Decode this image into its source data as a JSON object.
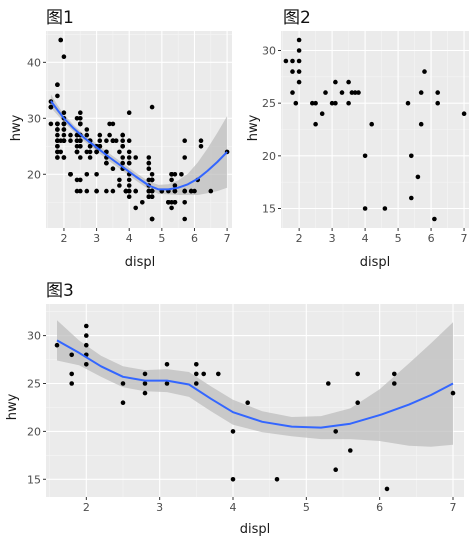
{
  "colors": {
    "panel_bg": "#ebebeb",
    "grid_major": "#ffffff",
    "grid_minor": "#f5f5f5",
    "point": "#000000",
    "smooth_line": "#3366ff",
    "ribbon": "#bdbdbd",
    "text": "#4d4d4d"
  },
  "chart_data": [
    {
      "type": "scatter",
      "title": "图1",
      "xlabel": "displ",
      "ylabel": "hwy",
      "xlim": [
        1.45,
        7.15
      ],
      "ylim": [
        10.4,
        45.6
      ],
      "xticks": [
        2,
        3,
        4,
        5,
        6,
        7
      ],
      "yticks": [
        20,
        30,
        40
      ],
      "grid": true,
      "points": [
        [
          1.8,
          29
        ],
        [
          1.8,
          29
        ],
        [
          2.0,
          31
        ],
        [
          2.0,
          30
        ],
        [
          2.8,
          26
        ],
        [
          2.8,
          26
        ],
        [
          3.1,
          27
        ],
        [
          1.8,
          26
        ],
        [
          1.8,
          25
        ],
        [
          2.0,
          28
        ],
        [
          2.0,
          27
        ],
        [
          2.8,
          25
        ],
        [
          2.8,
          25
        ],
        [
          3.1,
          25
        ],
        [
          3.1,
          25
        ],
        [
          2.8,
          24
        ],
        [
          3.1,
          25
        ],
        [
          4.2,
          23
        ],
        [
          5.3,
          20
        ],
        [
          5.3,
          15
        ],
        [
          5.3,
          20
        ],
        [
          5.7,
          17
        ],
        [
          6.0,
          17
        ],
        [
          5.7,
          26
        ],
        [
          5.7,
          23
        ],
        [
          6.2,
          26
        ],
        [
          6.2,
          25
        ],
        [
          7.0,
          24
        ],
        [
          5.3,
          19
        ],
        [
          5.3,
          14
        ],
        [
          5.7,
          15
        ],
        [
          6.5,
          17
        ],
        [
          2.4,
          27
        ],
        [
          2.4,
          30
        ],
        [
          3.1,
          26
        ],
        [
          3.5,
          29
        ],
        [
          3.6,
          26
        ],
        [
          2.4,
          24
        ],
        [
          3.0,
          24
        ],
        [
          3.3,
          22
        ],
        [
          3.3,
          22
        ],
        [
          3.3,
          24
        ],
        [
          3.3,
          24
        ],
        [
          3.3,
          17
        ],
        [
          3.8,
          22
        ],
        [
          3.8,
          21
        ],
        [
          3.8,
          23
        ],
        [
          4.0,
          23
        ],
        [
          3.7,
          19
        ],
        [
          3.7,
          18
        ],
        [
          3.9,
          17
        ],
        [
          3.9,
          17
        ],
        [
          4.7,
          19
        ],
        [
          4.7,
          19
        ],
        [
          4.7,
          12
        ],
        [
          4.7,
          17
        ],
        [
          5.2,
          15
        ],
        [
          5.2,
          17
        ],
        [
          3.9,
          17
        ],
        [
          4.7,
          12
        ],
        [
          4.7,
          17
        ],
        [
          4.7,
          16
        ],
        [
          5.2,
          15
        ],
        [
          5.7,
          17
        ],
        [
          5.9,
          17
        ],
        [
          4.7,
          12
        ],
        [
          4.7,
          17
        ],
        [
          4.7,
          17
        ],
        [
          4.7,
          16
        ],
        [
          5.2,
          15
        ],
        [
          5.2,
          15
        ],
        [
          5.7,
          17
        ],
        [
          5.9,
          17
        ],
        [
          4.6,
          17
        ],
        [
          5.4,
          15
        ],
        [
          5.4,
          17
        ],
        [
          4.0,
          19
        ],
        [
          4.0,
          20
        ],
        [
          4.0,
          17
        ],
        [
          4.0,
          17
        ],
        [
          4.6,
          19
        ],
        [
          5.0,
          17
        ],
        [
          4.2,
          17
        ],
        [
          4.2,
          17
        ],
        [
          4.6,
          16
        ],
        [
          4.6,
          16
        ],
        [
          4.6,
          17
        ],
        [
          5.4,
          15
        ],
        [
          5.4,
          17
        ],
        [
          3.8,
          26
        ],
        [
          3.8,
          25
        ],
        [
          4.0,
          26
        ],
        [
          4.0,
          24
        ],
        [
          4.6,
          21
        ],
        [
          4.6,
          22
        ],
        [
          4.6,
          23
        ],
        [
          4.6,
          22
        ],
        [
          5.4,
          20
        ],
        [
          1.6,
          33
        ],
        [
          1.6,
          32
        ],
        [
          1.6,
          32
        ],
        [
          1.6,
          29
        ],
        [
          1.6,
          32
        ],
        [
          1.8,
          34
        ],
        [
          1.8,
          36
        ],
        [
          1.8,
          36
        ],
        [
          2.0,
          29
        ],
        [
          2.4,
          26
        ],
        [
          2.4,
          27
        ],
        [
          2.5,
          30
        ],
        [
          2.5,
          31
        ],
        [
          3.3,
          26
        ],
        [
          2.0,
          26
        ],
        [
          2.0,
          28
        ],
        [
          2.0,
          26
        ],
        [
          2.0,
          29
        ],
        [
          2.7,
          28
        ],
        [
          2.7,
          27
        ],
        [
          2.7,
          24
        ],
        [
          3.0,
          24
        ],
        [
          3.7,
          24
        ],
        [
          4.0,
          22
        ],
        [
          4.7,
          19
        ],
        [
          4.7,
          20
        ],
        [
          4.7,
          17
        ],
        [
          5.7,
          12
        ],
        [
          6.1,
          19
        ],
        [
          4.0,
          18
        ],
        [
          4.2,
          14
        ],
        [
          4.4,
          15
        ],
        [
          4.6,
          18
        ],
        [
          5.4,
          18
        ],
        [
          5.4,
          15
        ],
        [
          5.4,
          17
        ],
        [
          4.0,
          16
        ],
        [
          4.0,
          17
        ],
        [
          4.6,
          17
        ],
        [
          5.0,
          17
        ],
        [
          2.4,
          24
        ],
        [
          2.4,
          24
        ],
        [
          2.5,
          23
        ],
        [
          2.5,
          26
        ],
        [
          3.5,
          26
        ],
        [
          3.5,
          26
        ],
        [
          3.0,
          25
        ],
        [
          3.0,
          24
        ],
        [
          3.5,
          21
        ],
        [
          3.3,
          22
        ],
        [
          3.3,
          23
        ],
        [
          4.0,
          22
        ],
        [
          5.6,
          20
        ],
        [
          3.1,
          25
        ],
        [
          3.8,
          27
        ],
        [
          3.8,
          25
        ],
        [
          3.8,
          27
        ],
        [
          5.3,
          20
        ],
        [
          2.5,
          26
        ],
        [
          2.5,
          26
        ],
        [
          2.5,
          25
        ],
        [
          2.5,
          27
        ],
        [
          2.5,
          25
        ],
        [
          2.5,
          27
        ],
        [
          2.2,
          20
        ],
        [
          2.2,
          20
        ],
        [
          2.5,
          19
        ],
        [
          2.5,
          17
        ],
        [
          2.7,
          20
        ],
        [
          2.7,
          17
        ],
        [
          3.4,
          29
        ],
        [
          3.4,
          27
        ],
        [
          4.0,
          31
        ],
        [
          4.7,
          32
        ],
        [
          2.2,
          27
        ],
        [
          2.2,
          26
        ],
        [
          2.4,
          26
        ],
        [
          2.4,
          25
        ],
        [
          3.0,
          25
        ],
        [
          3.0,
          17
        ],
        [
          3.5,
          17
        ],
        [
          2.2,
          20
        ],
        [
          2.2,
          20
        ],
        [
          2.4,
          19
        ],
        [
          2.4,
          17
        ],
        [
          3.0,
          20
        ],
        [
          3.0,
          17
        ],
        [
          3.5,
          26
        ],
        [
          1.8,
          26
        ],
        [
          1.8,
          27
        ],
        [
          1.8,
          28
        ],
        [
          1.8,
          24
        ],
        [
          1.8,
          25
        ],
        [
          1.8,
          23
        ],
        [
          2.0,
          23
        ],
        [
          2.8,
          26
        ],
        [
          1.9,
          44
        ],
        [
          2.0,
          41
        ],
        [
          2.5,
          29
        ],
        [
          1.8,
          26
        ],
        [
          1.8,
          28
        ],
        [
          1.8,
          29
        ],
        [
          1.8,
          29
        ],
        [
          1.8,
          28
        ],
        [
          2.0,
          29
        ],
        [
          1.9,
          26
        ],
        [
          2.0,
          26
        ],
        [
          2.0,
          29
        ],
        [
          2.0,
          29
        ],
        [
          2.5,
          29
        ],
        [
          2.5,
          29
        ],
        [
          2.8,
          23
        ],
        [
          1.9,
          24
        ],
        [
          1.9,
          44
        ],
        [
          2.0,
          29
        ],
        [
          2.0,
          26
        ],
        [
          2.5,
          29
        ],
        [
          2.5,
          29
        ],
        [
          1.8,
          23
        ],
        [
          1.8,
          24
        ],
        [
          2.0,
          29
        ],
        [
          2.0,
          23
        ]
      ],
      "smooth": {
        "x": [
          1.6,
          1.8,
          2.0,
          2.3,
          2.6,
          3.0,
          3.4,
          3.8,
          4.2,
          4.6,
          4.9,
          5.2,
          5.5,
          5.8,
          6.1,
          6.4,
          6.7,
          7.0
        ],
        "y": [
          33.1,
          31.5,
          30.0,
          28.2,
          26.6,
          24.8,
          23.0,
          21.3,
          19.6,
          18.0,
          17.3,
          17.3,
          17.6,
          18.2,
          19.2,
          20.6,
          22.2,
          24.0
        ],
        "lo": [
          31.9,
          30.6,
          29.3,
          27.6,
          26.0,
          24.1,
          22.3,
          20.6,
          18.9,
          17.3,
          16.5,
          16.4,
          16.3,
          16.3,
          16.3,
          16.6,
          17.0,
          17.6
        ],
        "hi": [
          34.3,
          32.4,
          30.7,
          28.8,
          27.2,
          25.5,
          23.7,
          22.0,
          20.3,
          18.7,
          18.1,
          18.2,
          18.9,
          20.1,
          22.1,
          24.6,
          27.4,
          30.4
        ]
      }
    },
    {
      "type": "scatter",
      "title": "图2",
      "xlabel": "displ",
      "ylabel": "hwy",
      "xlim": [
        1.45,
        7.15
      ],
      "ylim": [
        13.15,
        31.85
      ],
      "xticks": [
        2,
        3,
        4,
        5,
        6,
        7
      ],
      "yticks": [
        15,
        20,
        25,
        30
      ],
      "grid": true,
      "points": [
        [
          1.6,
          29
        ],
        [
          1.8,
          29
        ],
        [
          1.8,
          28
        ],
        [
          1.8,
          26
        ],
        [
          1.9,
          25
        ],
        [
          2.0,
          31
        ],
        [
          2.0,
          30
        ],
        [
          2.0,
          29
        ],
        [
          2.0,
          28
        ],
        [
          2.0,
          27
        ],
        [
          2.4,
          25
        ],
        [
          2.5,
          23
        ],
        [
          2.5,
          25
        ],
        [
          2.7,
          24
        ],
        [
          2.8,
          26
        ],
        [
          3.0,
          25
        ],
        [
          3.1,
          27
        ],
        [
          3.1,
          25
        ],
        [
          3.3,
          26
        ],
        [
          3.5,
          25
        ],
        [
          3.5,
          27
        ],
        [
          3.6,
          26
        ],
        [
          3.7,
          26
        ],
        [
          3.8,
          26
        ],
        [
          4.0,
          15
        ],
        [
          4.0,
          20
        ],
        [
          4.2,
          23
        ],
        [
          4.6,
          15
        ],
        [
          5.3,
          25
        ],
        [
          5.4,
          16
        ],
        [
          5.4,
          20
        ],
        [
          5.6,
          18
        ],
        [
          5.7,
          23
        ],
        [
          5.7,
          26
        ],
        [
          5.8,
          28
        ],
        [
          6.1,
          14
        ],
        [
          6.2,
          25
        ],
        [
          6.2,
          26
        ],
        [
          7.0,
          24
        ]
      ]
    },
    {
      "type": "scatter",
      "title": "图3",
      "xlabel": "displ",
      "ylabel": "hwy",
      "xlim": [
        1.45,
        7.15
      ],
      "ylim": [
        13.15,
        33.3
      ],
      "xticks": [
        2,
        3,
        4,
        5,
        6,
        7
      ],
      "yticks": [
        15,
        20,
        25,
        30
      ],
      "grid": true,
      "points": [
        [
          1.6,
          29
        ],
        [
          1.8,
          28
        ],
        [
          1.8,
          26
        ],
        [
          1.8,
          25
        ],
        [
          2.0,
          31
        ],
        [
          2.0,
          30
        ],
        [
          2.0,
          29
        ],
        [
          2.0,
          28
        ],
        [
          2.0,
          27
        ],
        [
          2.5,
          25
        ],
        [
          2.5,
          23
        ],
        [
          2.8,
          26
        ],
        [
          2.8,
          25
        ],
        [
          2.8,
          24
        ],
        [
          3.1,
          27
        ],
        [
          3.1,
          25
        ],
        [
          3.5,
          27
        ],
        [
          3.5,
          26
        ],
        [
          3.5,
          25
        ],
        [
          3.6,
          26
        ],
        [
          3.8,
          26
        ],
        [
          4.0,
          20
        ],
        [
          4.0,
          15
        ],
        [
          4.2,
          23
        ],
        [
          4.6,
          15
        ],
        [
          5.3,
          25
        ],
        [
          5.4,
          20
        ],
        [
          5.4,
          16
        ],
        [
          5.6,
          18
        ],
        [
          5.7,
          26
        ],
        [
          5.7,
          23
        ],
        [
          6.1,
          14
        ],
        [
          6.2,
          26
        ],
        [
          6.2,
          25
        ],
        [
          7.0,
          24
        ]
      ],
      "smooth": {
        "x": [
          1.6,
          1.9,
          2.2,
          2.5,
          2.8,
          3.1,
          3.4,
          3.7,
          4.0,
          4.4,
          4.8,
          5.2,
          5.6,
          6.0,
          6.4,
          6.7,
          7.0
        ],
        "y": [
          29.5,
          28.2,
          26.8,
          25.7,
          25.3,
          25.3,
          24.9,
          23.4,
          22.0,
          21.0,
          20.5,
          20.4,
          20.8,
          21.7,
          22.8,
          23.8,
          25.0
        ],
        "lo": [
          27.4,
          26.9,
          25.7,
          24.6,
          24.2,
          24.1,
          23.6,
          22.1,
          20.7,
          19.9,
          19.5,
          19.2,
          19.2,
          19.0,
          18.5,
          18.4,
          18.6
        ],
        "hi": [
          31.6,
          29.5,
          27.9,
          26.8,
          26.4,
          26.5,
          26.2,
          24.7,
          23.3,
          22.1,
          21.5,
          21.6,
          22.4,
          24.4,
          27.1,
          29.2,
          31.4
        ]
      }
    }
  ]
}
